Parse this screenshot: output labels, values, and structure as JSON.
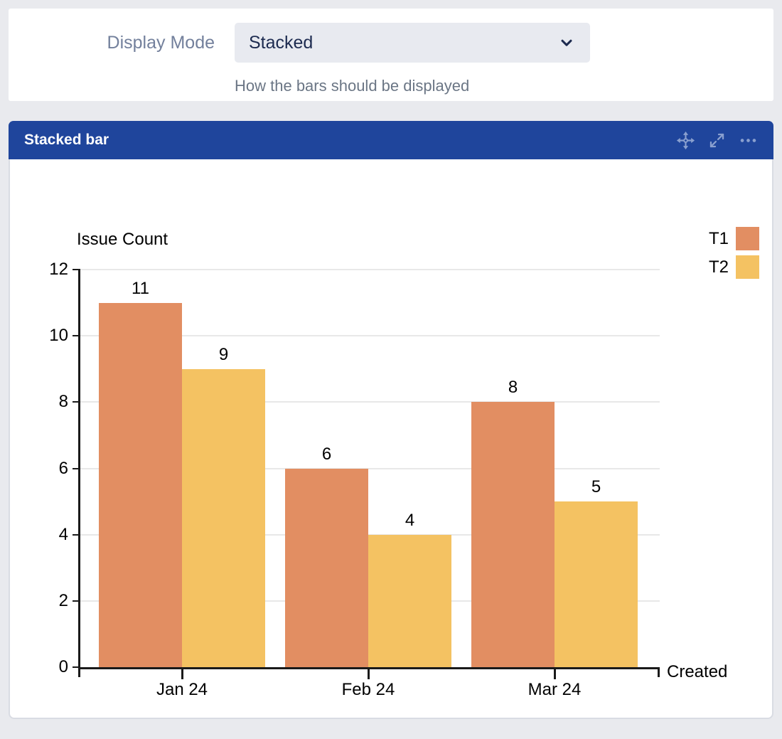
{
  "settings_panel": {
    "label": "Display Mode",
    "select_value": "Stacked",
    "help_text": "How the bars should be displayed"
  },
  "widget": {
    "title": "Stacked bar",
    "toolbar_icons": [
      "move",
      "expand",
      "more-options"
    ]
  },
  "chart_data": {
    "type": "bar",
    "title": "Issue Count",
    "ylabel": "Issue Count",
    "xlabel": "Created",
    "categories": [
      "Jan 24",
      "Feb 24",
      "Mar 24"
    ],
    "series": [
      {
        "name": "T1",
        "color": "#e28e62",
        "values": [
          11,
          6,
          8
        ]
      },
      {
        "name": "T2",
        "color": "#f4c262",
        "values": [
          9,
          4,
          5
        ]
      }
    ],
    "ylim": [
      0,
      12
    ],
    "yticks": [
      0,
      2,
      4,
      6,
      8,
      10,
      12
    ],
    "grid": true,
    "data_labels": true,
    "legend_position": "top-right",
    "colors": {
      "header_bg": "#1f459c",
      "header_icon": "#8aa0cf",
      "gridline": "#e8e8e8",
      "axis": "#1a1a1a"
    }
  }
}
